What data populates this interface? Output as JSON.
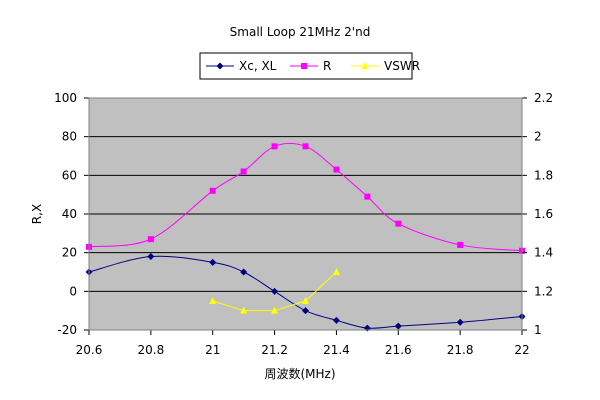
{
  "chart_data": {
    "type": "line",
    "title": "Small Loop 21MHz 2'nd",
    "xlabel": "周波数(MHz)",
    "ylabel": "R,X",
    "xlim": [
      20.6,
      22
    ],
    "x_ticks": [
      "20.6",
      "20.8",
      "21",
      "21.2",
      "21.4",
      "21.6",
      "21.8",
      "22"
    ],
    "ylim_left": [
      -20,
      100
    ],
    "y_ticks_left": [
      "-20",
      "0",
      "20",
      "40",
      "60",
      "80",
      "100"
    ],
    "ylim_right": [
      1,
      2.2
    ],
    "y_ticks_right": [
      "1",
      "1.2",
      "1.4",
      "1.6",
      "1.8",
      "2",
      "2.2"
    ],
    "grid": "horizontal",
    "plot_background": "#c0c0c0",
    "legend_position": "top-center",
    "series": [
      {
        "name": "Xc, XL",
        "axis": "left",
        "color": "#000080",
        "marker": "diamond",
        "smooth": true,
        "x": [
          20.6,
          20.8,
          21.0,
          21.1,
          21.2,
          21.3,
          21.4,
          21.5,
          21.6,
          21.8,
          22.0
        ],
        "y": [
          10,
          18,
          15,
          10,
          0,
          -10,
          -15,
          -19,
          -18,
          -16,
          -13
        ]
      },
      {
        "name": "R",
        "axis": "left",
        "color": "#ff00ff",
        "marker": "square",
        "smooth": true,
        "x": [
          20.6,
          20.8,
          21.0,
          21.1,
          21.2,
          21.3,
          21.4,
          21.5,
          21.6,
          21.8,
          22.0
        ],
        "y": [
          23,
          27,
          52,
          62,
          75,
          75,
          63,
          49,
          35,
          24,
          21
        ]
      },
      {
        "name": "VSWR",
        "axis": "right",
        "color": "#ffff00",
        "marker": "triangle",
        "smooth": false,
        "x": [
          21.0,
          21.1,
          21.2,
          21.3,
          21.4
        ],
        "y": [
          1.15,
          1.1,
          1.1,
          1.15,
          1.3
        ]
      }
    ]
  }
}
